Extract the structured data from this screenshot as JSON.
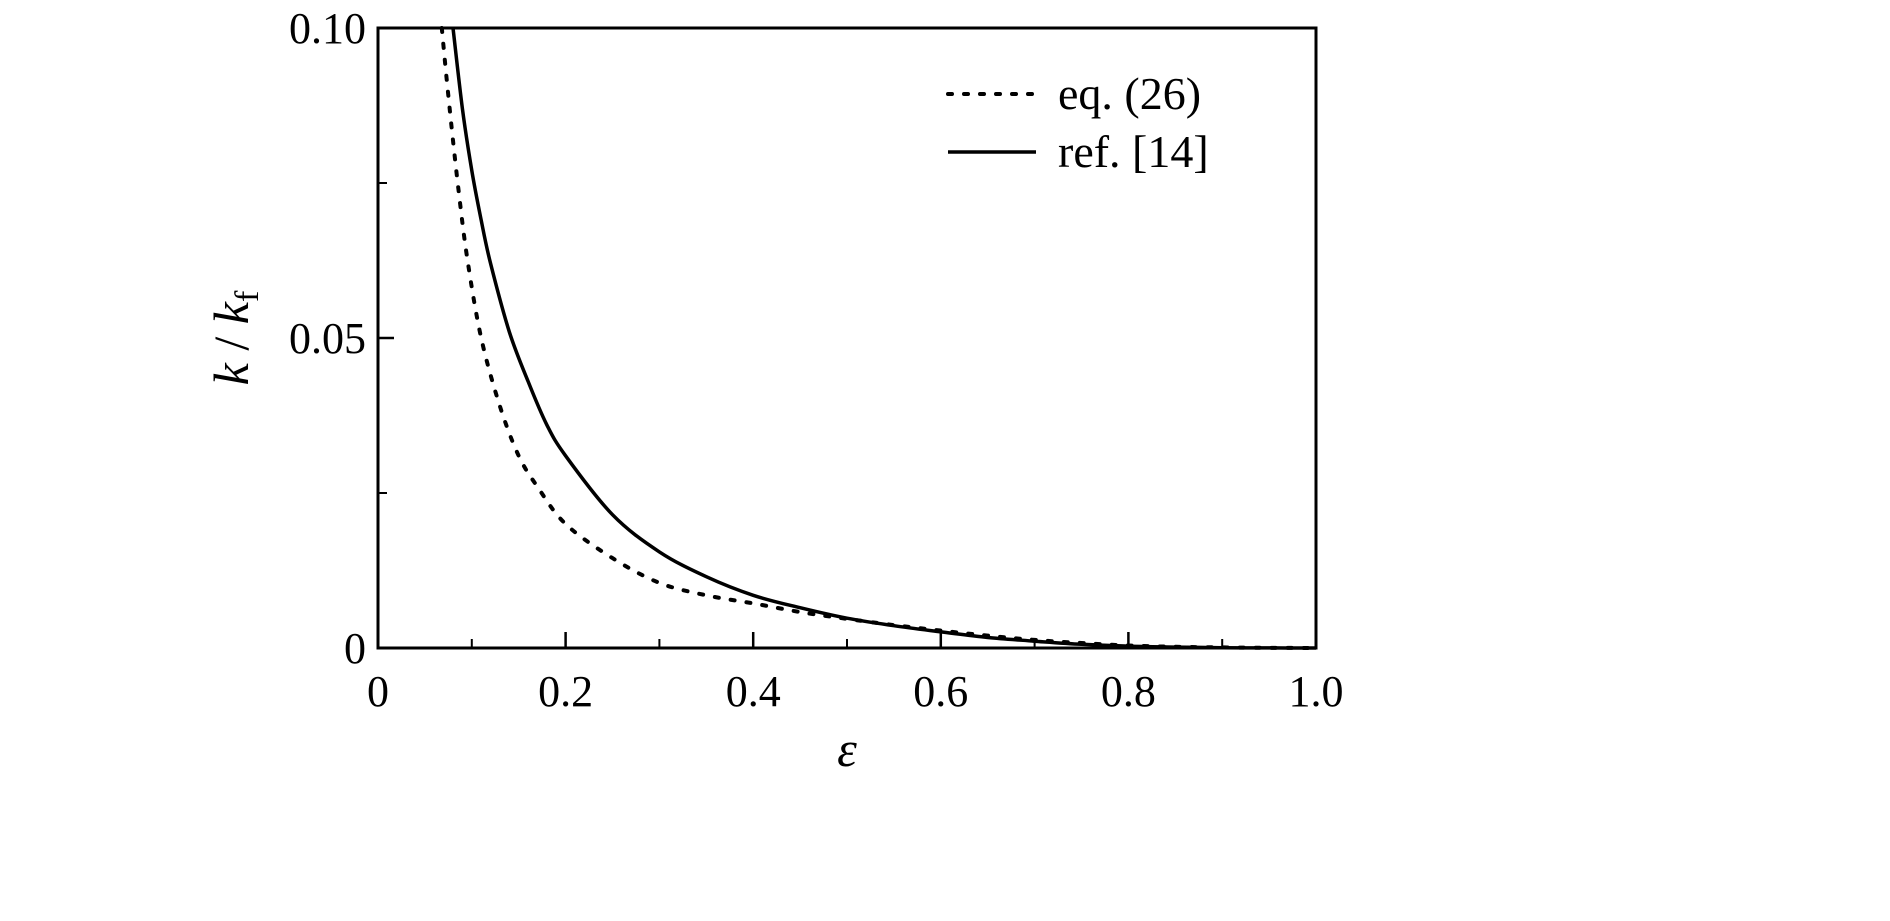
{
  "chart_data": {
    "type": "line",
    "title": "",
    "xlabel": "ε",
    "ylabel": {
      "main": "k",
      "sep": " / ",
      "var": "k",
      "sub": "f"
    },
    "xlim": [
      0,
      1.0
    ],
    "ylim": [
      0,
      0.1
    ],
    "x_ticks": [
      {
        "value": 0,
        "label": "0"
      },
      {
        "value": 0.2,
        "label": "0.2"
      },
      {
        "value": 0.4,
        "label": "0.4"
      },
      {
        "value": 0.6,
        "label": "0.6"
      },
      {
        "value": 0.8,
        "label": "0.8"
      },
      {
        "value": 1.0,
        "label": "1.0"
      }
    ],
    "x_minor_ticks": [
      0.1,
      0.3,
      0.5,
      0.7,
      0.9
    ],
    "y_ticks": [
      {
        "value": 0,
        "label": "0"
      },
      {
        "value": 0.05,
        "label": "0.05"
      },
      {
        "value": 0.1,
        "label": "0.10"
      }
    ],
    "y_minor_ticks": [
      0.025,
      0.075
    ],
    "grid": false,
    "legend_position": "top-right",
    "series": [
      {
        "name": "eq. (26)",
        "style": "dotted",
        "color": "#000000",
        "x": [
          0.068,
          0.075,
          0.085,
          0.095,
          0.11,
          0.13,
          0.15,
          0.17,
          0.2,
          0.25,
          0.3,
          0.35,
          0.4,
          0.45,
          0.5,
          0.55,
          0.6,
          0.65,
          0.7,
          0.75,
          0.8,
          0.85,
          0.9,
          0.95,
          1.0
        ],
        "y": [
          0.1,
          0.089,
          0.075,
          0.063,
          0.05,
          0.039,
          0.031,
          0.026,
          0.02,
          0.0145,
          0.0105,
          0.0085,
          0.0072,
          0.0058,
          0.0047,
          0.0037,
          0.0028,
          0.002,
          0.0013,
          0.0008,
          0.0004,
          0.0002,
          0.0001,
          3e-05,
          0.0
        ]
      },
      {
        "name": "ref. [14]",
        "style": "solid",
        "color": "#000000",
        "x": [
          0.08,
          0.09,
          0.1,
          0.11,
          0.12,
          0.14,
          0.16,
          0.18,
          0.2,
          0.25,
          0.3,
          0.35,
          0.4,
          0.45,
          0.5,
          0.55,
          0.6,
          0.65,
          0.7,
          0.75,
          0.8,
          0.85,
          0.9,
          0.95,
          1.0
        ],
        "y": [
          0.1,
          0.087,
          0.077,
          0.069,
          0.062,
          0.051,
          0.043,
          0.036,
          0.031,
          0.0215,
          0.0155,
          0.0115,
          0.0085,
          0.0065,
          0.0048,
          0.0036,
          0.0026,
          0.0017,
          0.0011,
          0.0006,
          0.0003,
          0.00015,
          5e-05,
          1e-05,
          0.0
        ]
      }
    ]
  }
}
